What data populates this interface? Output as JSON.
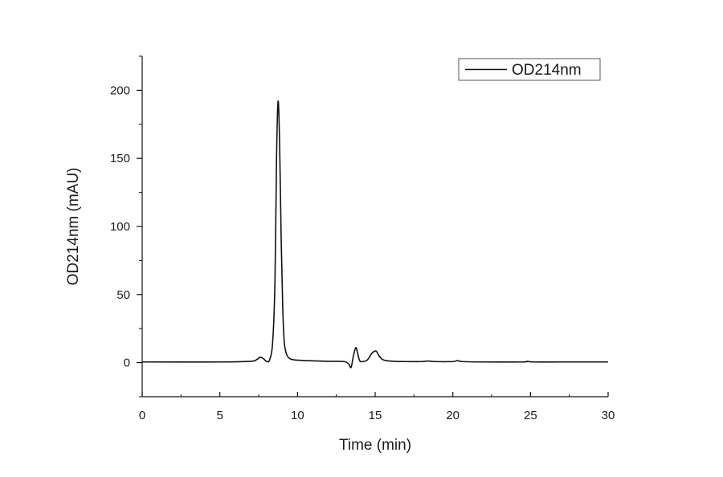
{
  "chart_data": {
    "type": "line",
    "xlabel": "Time (min)",
    "ylabel": "OD214nm (mAU)",
    "xlim": [
      0,
      30
    ],
    "ylim": [
      -25,
      225
    ],
    "x_ticks": [
      0,
      5,
      10,
      15,
      20,
      25,
      30
    ],
    "y_ticks": [
      0,
      50,
      100,
      150,
      200
    ],
    "grid": false,
    "legend_position": "top-right",
    "line_color": "#111111",
    "series": [
      {
        "name": "OD214nm",
        "x": [
          0,
          5,
          7.0,
          7.4,
          7.6,
          7.8,
          8.0,
          8.2,
          8.4,
          8.55,
          8.65,
          8.75,
          8.85,
          8.95,
          9.05,
          9.15,
          9.3,
          9.5,
          9.8,
          10.5,
          12,
          13.0,
          13.3,
          13.45,
          13.6,
          13.75,
          13.85,
          14.0,
          14.2,
          14.5,
          14.8,
          15.05,
          15.25,
          15.45,
          15.7,
          16.2,
          17.0,
          18.0,
          18.4,
          18.8,
          20.0,
          20.3,
          20.6,
          22.0,
          24.5,
          24.8,
          25.2,
          27.0,
          30.0
        ],
        "y": [
          0.5,
          0.5,
          1.0,
          2.5,
          4.0,
          3.0,
          1.0,
          2.0,
          15.0,
          60.0,
          150.0,
          192.0,
          160.0,
          90.0,
          40.0,
          15.0,
          6.0,
          3.0,
          2.0,
          1.5,
          1.0,
          0.8,
          -1.0,
          -3.5,
          5.0,
          11.0,
          8.0,
          1.5,
          0.8,
          2.0,
          7.0,
          8.5,
          5.0,
          2.5,
          1.5,
          1.0,
          0.8,
          0.8,
          1.2,
          0.8,
          0.8,
          1.5,
          0.8,
          0.5,
          0.5,
          1.0,
          0.5,
          0.5,
          0.5
        ]
      }
    ]
  }
}
